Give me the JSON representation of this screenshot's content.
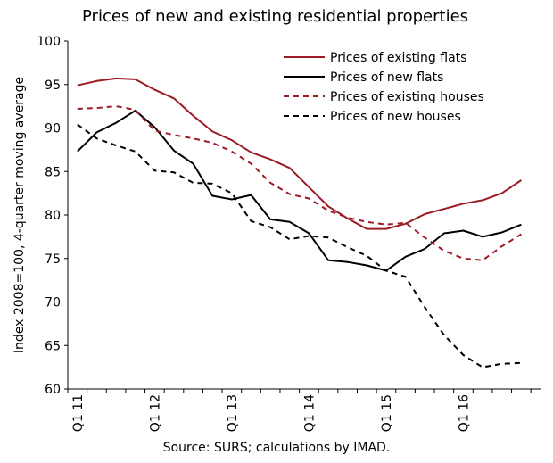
{
  "chart_data": {
    "type": "line",
    "title": "Prices of new and existing residential properties",
    "ylabel": "Index 2008=100, 4-quarter moving average",
    "xlabel": "",
    "source": "Source: SURS; calculations by IMAD.",
    "ylim": [
      60,
      100
    ],
    "yticks": [
      60,
      65,
      70,
      75,
      80,
      85,
      90,
      95,
      100
    ],
    "xtick_labels": [
      "Q1 11",
      "Q1 12",
      "Q1 13",
      "Q1 14",
      "Q1 15",
      "Q1 16"
    ],
    "x_unit": "quarter",
    "x_start": "Q1 11",
    "legend_position": "top-right",
    "series": [
      {
        "name": "Prices of existing flats",
        "color": "#9b1b25",
        "style": "solid",
        "values": [
          94.9,
          95.4,
          95.7,
          95.6,
          94.4,
          93.4,
          91.4,
          89.6,
          88.6,
          87.2,
          86.4,
          85.4,
          83.2,
          81.0,
          79.6,
          78.4,
          78.4,
          79.0,
          80.1,
          80.7,
          81.3,
          81.7,
          82.5,
          84.0
        ]
      },
      {
        "name": "Prices of new flats",
        "color": "#000000",
        "style": "solid",
        "values": [
          87.3,
          89.5,
          90.6,
          92.0,
          90.1,
          87.4,
          85.9,
          82.2,
          81.8,
          82.3,
          79.5,
          79.2,
          77.9,
          74.8,
          74.6,
          74.2,
          73.6,
          75.2,
          76.1,
          77.9,
          78.2,
          77.5,
          78.0,
          78.9
        ]
      },
      {
        "name": "Prices of existing houses",
        "color": "#9b1b25",
        "style": "dashed",
        "values": [
          92.2,
          92.3,
          92.5,
          92.1,
          89.7,
          89.2,
          88.8,
          88.3,
          87.3,
          85.9,
          83.7,
          82.4,
          81.9,
          80.5,
          79.7,
          79.2,
          78.9,
          79.1,
          77.4,
          75.9,
          75.0,
          74.8,
          76.4,
          77.8
        ]
      },
      {
        "name": "Prices of new houses",
        "color": "#000000",
        "style": "dashed",
        "values": [
          90.4,
          88.8,
          88.0,
          87.3,
          85.1,
          84.9,
          83.7,
          83.6,
          82.5,
          79.3,
          78.6,
          77.2,
          77.6,
          77.4,
          76.3,
          75.3,
          73.6,
          72.9,
          69.4,
          66.2,
          63.9,
          62.5,
          62.9,
          63.0
        ]
      }
    ]
  }
}
